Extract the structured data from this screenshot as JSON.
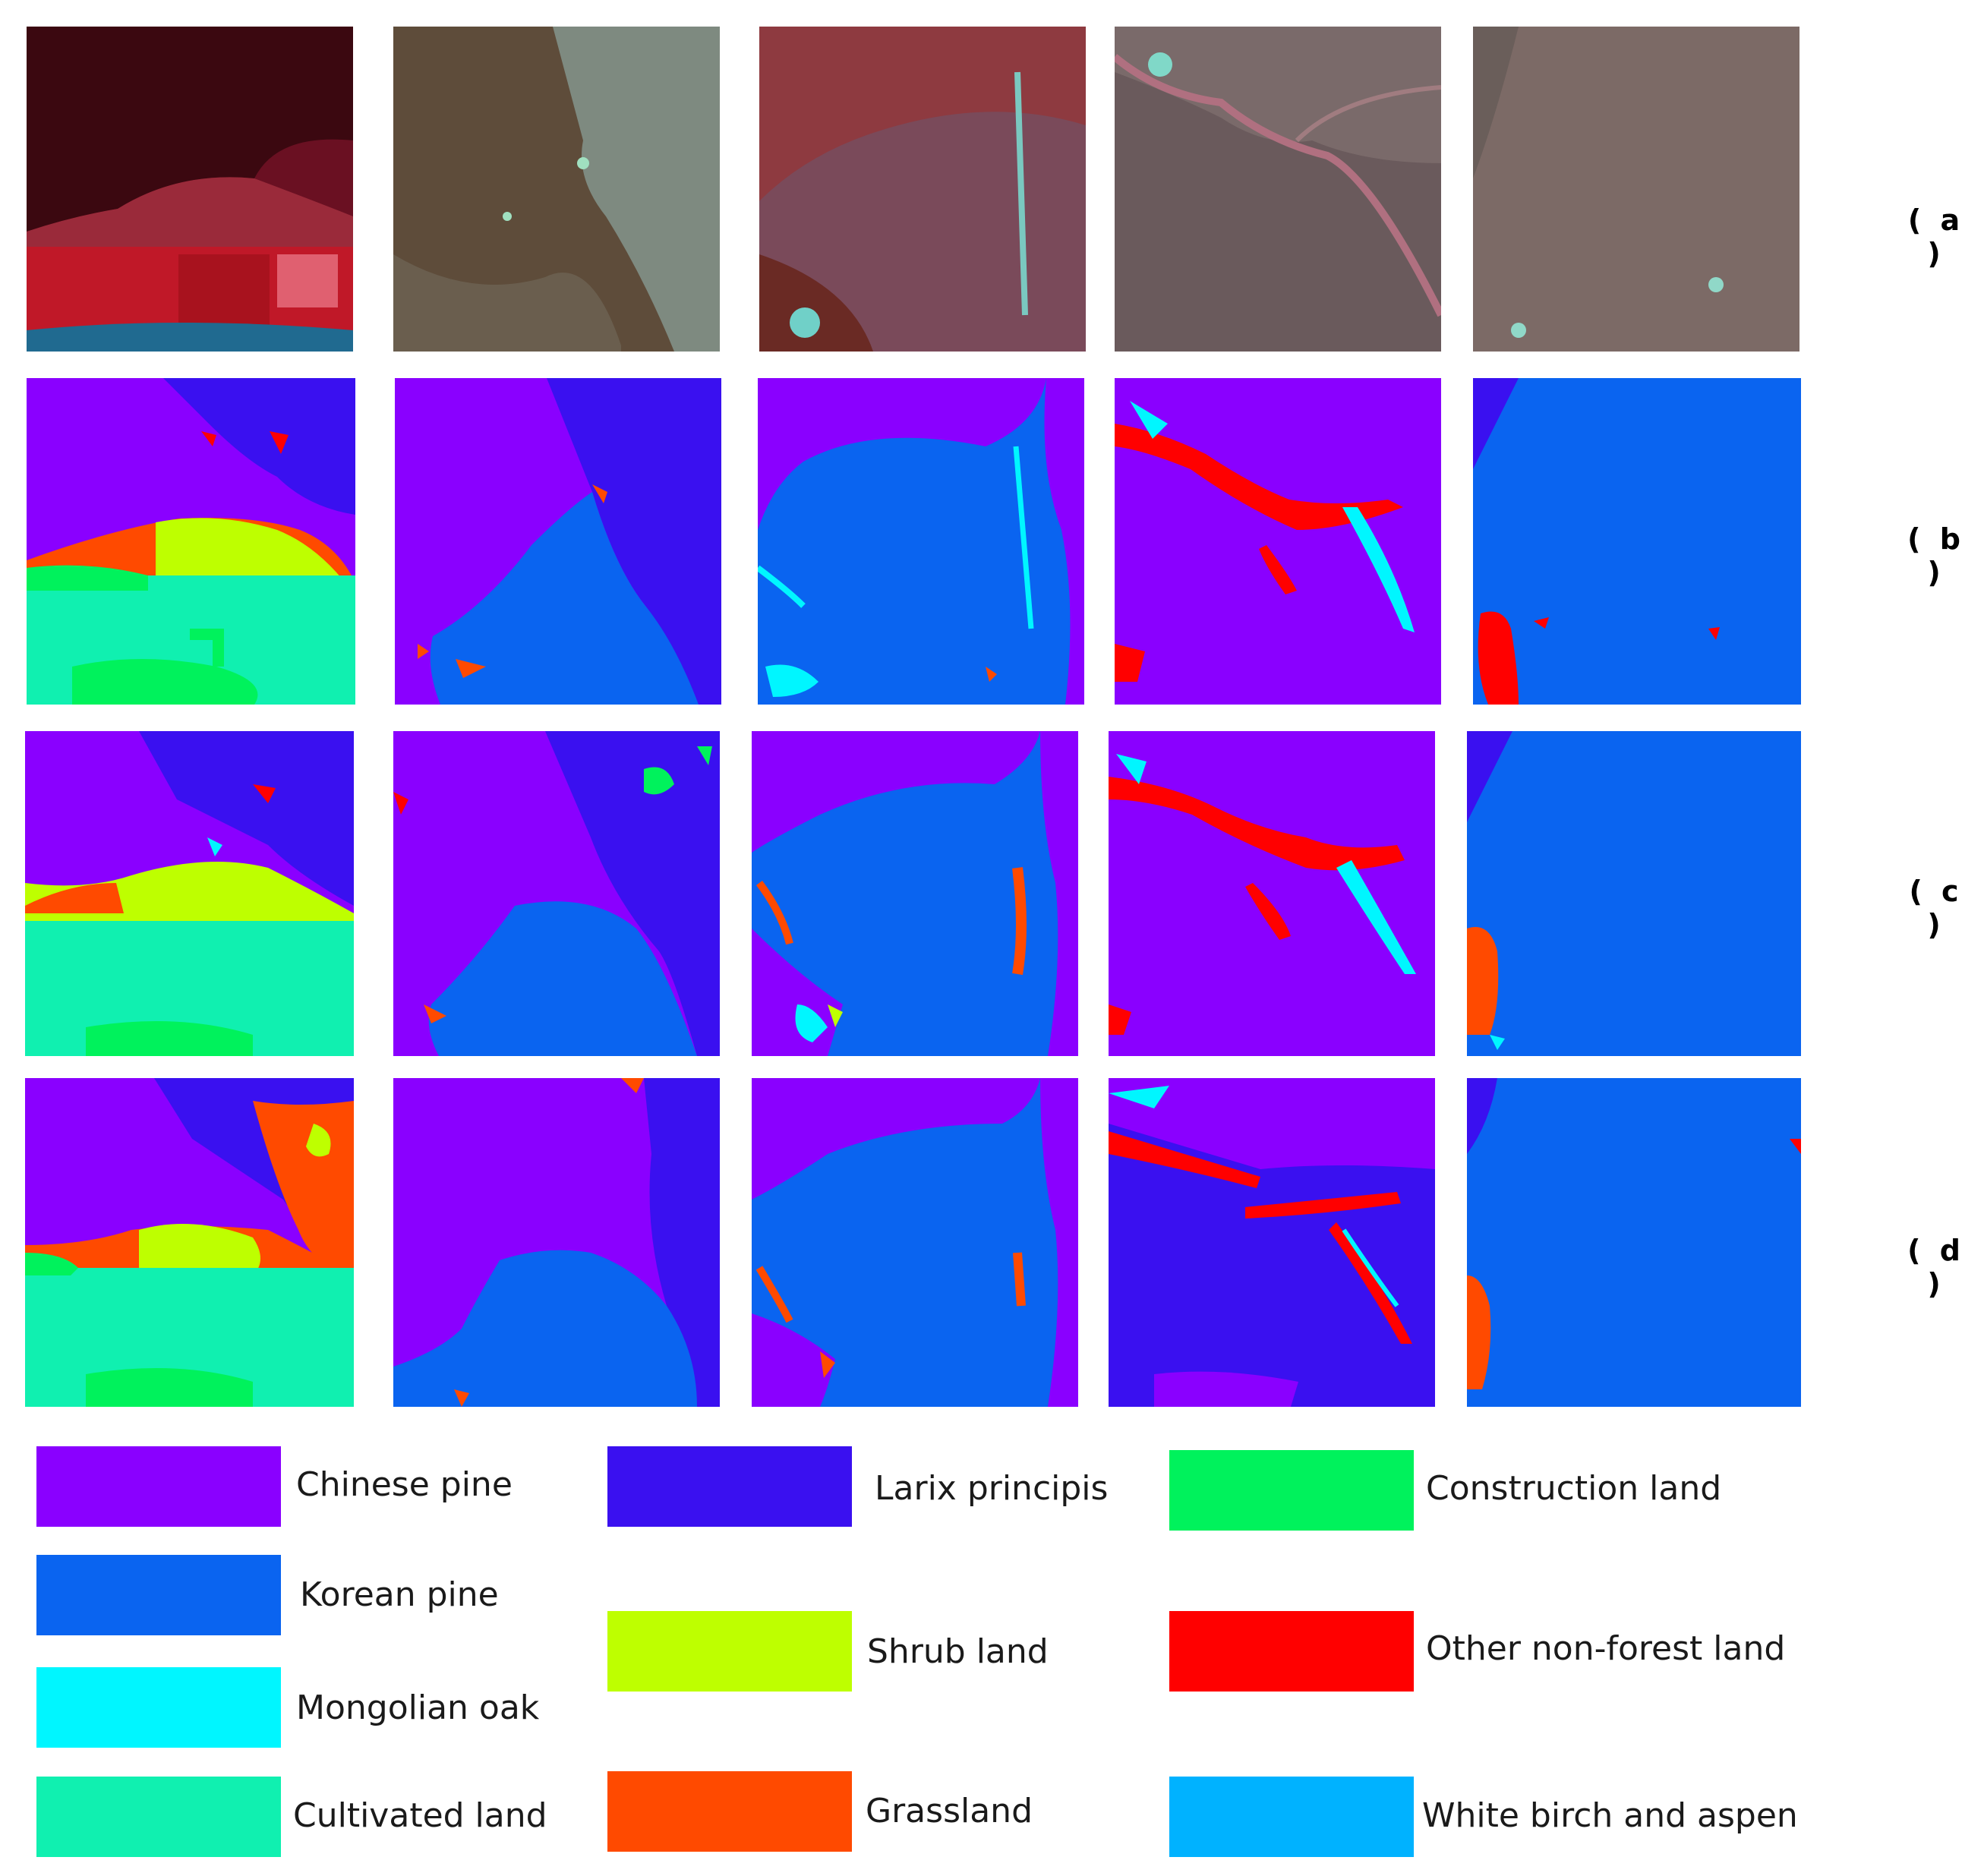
{
  "colors": {
    "chinese_pine": "#8A00FF",
    "larix_principis": "#3A10F0",
    "construction_land": "#00F25C",
    "korean_pine": "#0A64F0",
    "shrub_land": "#BEFF00",
    "other_non_forest": "#FF0000",
    "mongolian_oak": "#00F6FF",
    "cultivated_land": "#10F0B0",
    "grassland": "#FF4A00",
    "white_birch_aspen": "#00B2FF"
  },
  "rows": [
    {
      "label": "( a )",
      "kind": "satellite image"
    },
    {
      "label": "( b )",
      "kind": "classification map"
    },
    {
      "label": "( c )",
      "kind": "classification map"
    },
    {
      "label": "( d )",
      "kind": "classification map"
    }
  ],
  "legend": [
    {
      "label": "Chinese pine",
      "color_key": "chinese_pine"
    },
    {
      "label": "Larix principis",
      "color_key": "larix_principis"
    },
    {
      "label": "Construction land",
      "color_key": "construction_land"
    },
    {
      "label": "Korean pine",
      "color_key": "korean_pine"
    },
    {
      "label": "Shrub land",
      "color_key": "shrub_land"
    },
    {
      "label": "Other non-forest land",
      "color_key": "other_non_forest"
    },
    {
      "label": "Mongolian oak",
      "color_key": "mongolian_oak"
    },
    {
      "label": "Cultivated land",
      "color_key": "cultivated_land"
    },
    {
      "label": "Grassland",
      "color_key": "grassland"
    },
    {
      "label": "White birch and aspen",
      "color_key": "white_birch_aspen"
    }
  ]
}
